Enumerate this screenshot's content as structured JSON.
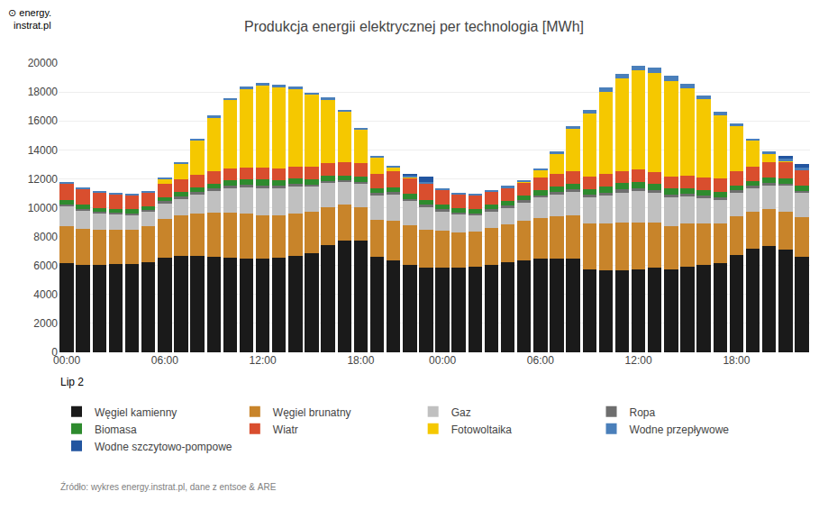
{
  "chart_data": {
    "type": "bar",
    "title": "Produkcja energii elektrycznej per technologia [MWh]",
    "annotations": [
      "Lip 2",
      "Źródło: wykres energy.instrat.pl, dane z entsoe & ARE",
      "⊙ energy.\n  instrat.pl"
    ],
    "categories": [
      "00:00",
      null,
      null,
      null,
      null,
      null,
      "06:00",
      null,
      null,
      null,
      null,
      null,
      "12:00",
      null,
      null,
      null,
      null,
      null,
      "18:00",
      null,
      null,
      null,
      null,
      "00:00",
      null,
      null,
      null,
      null,
      null,
      "06:00",
      null,
      null,
      null,
      null,
      null,
      "12:00",
      null,
      null,
      null,
      null,
      null,
      "18:00",
      null,
      null,
      null,
      null
    ],
    "series": [
      {
        "name": "Węgiel kamienny",
        "color": "#1a1a1a",
        "values": [
          6150,
          6050,
          6050,
          6100,
          6100,
          6200,
          6550,
          6650,
          6650,
          6600,
          6550,
          6500,
          6500,
          6550,
          6650,
          6850,
          7400,
          7750,
          7700,
          6600,
          6350,
          6050,
          5850,
          5850,
          5850,
          5900,
          6050,
          6200,
          6350,
          6450,
          6450,
          6450,
          5750,
          5650,
          5650,
          5750,
          5850,
          5750,
          5950,
          6050,
          6150,
          6750,
          7150,
          7350,
          7100,
          6600
        ]
      },
      {
        "name": "Węgiel brunatny",
        "color": "#c8842a",
        "values": [
          2600,
          2500,
          2400,
          2400,
          2400,
          2500,
          2700,
          2800,
          2950,
          3050,
          3100,
          3100,
          3000,
          2950,
          2950,
          2850,
          2650,
          2450,
          2350,
          2550,
          2750,
          2750,
          2650,
          2550,
          2450,
          2450,
          2550,
          2650,
          2750,
          2850,
          2950,
          3050,
          3150,
          3250,
          3350,
          3250,
          3100,
          3000,
          2950,
          2850,
          2750,
          2650,
          2550,
          2550,
          2650,
          2750
        ]
      },
      {
        "name": "Gaz",
        "color": "#c0c0c0",
        "values": [
          1350,
          1250,
          1150,
          1050,
          1000,
          1000,
          1050,
          1150,
          1300,
          1500,
          1700,
          1800,
          1850,
          1850,
          1850,
          1750,
          1650,
          1550,
          1600,
          1700,
          1800,
          1650,
          1550,
          1350,
          1250,
          1150,
          1150,
          1150,
          1250,
          1400,
          1500,
          1600,
          1800,
          1950,
          2050,
          2150,
          2050,
          1950,
          1850,
          1750,
          1650,
          1650,
          1650,
          1650,
          1750,
          1650
        ]
      },
      {
        "name": "Ropa",
        "color": "#6e6e6e",
        "values": [
          140,
          130,
          120,
          115,
          115,
          125,
          145,
          155,
          165,
          175,
          185,
          195,
          195,
          185,
          175,
          165,
          155,
          145,
          145,
          155,
          165,
          155,
          145,
          135,
          125,
          125,
          135,
          145,
          155,
          165,
          175,
          185,
          195,
          205,
          215,
          215,
          205,
          195,
          185,
          175,
          165,
          155,
          155,
          165,
          175,
          165
        ]
      },
      {
        "name": "Biomasa",
        "color": "#2e8b2e",
        "values": [
          290,
          280,
          270,
          270,
          270,
          280,
          300,
          310,
          330,
          350,
          370,
          380,
          390,
          380,
          370,
          360,
          350,
          340,
          330,
          340,
          350,
          340,
          320,
          310,
          300,
          300,
          310,
          320,
          330,
          350,
          360,
          370,
          390,
          410,
          430,
          440,
          430,
          420,
          410,
          390,
          370,
          350,
          340,
          350,
          360,
          350
        ]
      },
      {
        "name": "Wiatr",
        "color": "#d94e2e",
        "values": [
          1150,
          1100,
          1050,
          1000,
          960,
          940,
          910,
          880,
          860,
          850,
          830,
          820,
          810,
          810,
          820,
          840,
          870,
          920,
          980,
          1020,
          1080,
          1120,
          1160,
          1020,
          970,
          950,
          930,
          920,
          910,
          900,
          890,
          880,
          870,
          850,
          830,
          820,
          810,
          820,
          840,
          870,
          920,
          970,
          1020,
          1070,
          1120,
          1070
        ]
      },
      {
        "name": "Fotowoltaika",
        "color": "#f5c800",
        "values": [
          0,
          0,
          0,
          0,
          0,
          30,
          350,
          1100,
          2400,
          3700,
          4700,
          5400,
          5700,
          5600,
          5400,
          5000,
          4400,
          3500,
          2300,
          1100,
          280,
          15,
          0,
          0,
          0,
          0,
          0,
          0,
          50,
          450,
          1400,
          2900,
          4350,
          5700,
          6400,
          6850,
          6900,
          6650,
          6100,
          5400,
          4400,
          3100,
          1750,
          570,
          40,
          0
        ]
      },
      {
        "name": "Wodne przepływowe",
        "color": "#4a7fba",
        "values": [
          75,
          70,
          65,
          65,
          65,
          70,
          85,
          105,
          125,
          145,
          155,
          165,
          165,
          165,
          155,
          145,
          135,
          125,
          125,
          135,
          145,
          135,
          115,
          105,
          95,
          95,
          105,
          115,
          125,
          145,
          165,
          195,
          245,
          295,
          325,
          345,
          335,
          315,
          285,
          255,
          225,
          195,
          175,
          175,
          195,
          185
        ]
      },
      {
        "name": "Wodne szczytowo-pompowe",
        "color": "#2255a0",
        "values": [
          0,
          0,
          0,
          0,
          0,
          0,
          0,
          0,
          0,
          0,
          0,
          0,
          0,
          0,
          0,
          0,
          0,
          0,
          0,
          0,
          0,
          150,
          350,
          0,
          0,
          0,
          0,
          0,
          0,
          0,
          0,
          0,
          0,
          0,
          0,
          0,
          0,
          0,
          0,
          0,
          0,
          0,
          0,
          0,
          180,
          280
        ]
      }
    ],
    "ylim": [
      0,
      20000
    ],
    "yticks": [
      0,
      2000,
      4000,
      6000,
      8000,
      10000,
      12000,
      14000,
      16000,
      18000,
      20000
    ],
    "stacked": true,
    "grid": true,
    "legend": "bottom"
  }
}
